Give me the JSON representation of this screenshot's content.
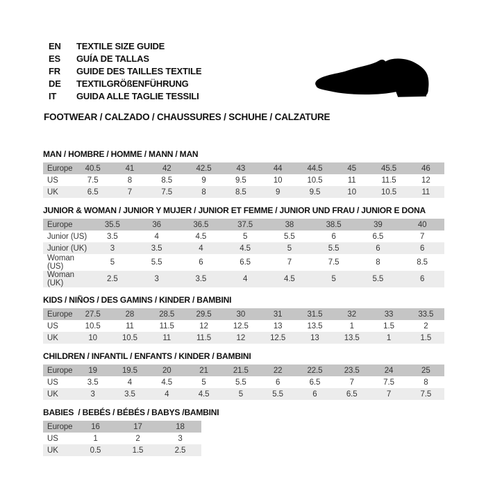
{
  "header": {
    "languages": [
      {
        "code": "EN",
        "label": "TEXTILE SIZE GUIDE"
      },
      {
        "code": "ES",
        "label": "GUÍA DE TALLAS"
      },
      {
        "code": "FR",
        "label": "GUIDE DES TAILLES TEXTILE"
      },
      {
        "code": "DE",
        "label": "TEXTILGRÖßENFÜHRUNG"
      },
      {
        "code": "IT",
        "label": "GUIDA ALLE TAGLIE TESSILI"
      }
    ],
    "category_title": "FOOTWEAR / CALZADO / CHAUSSURES / SCHUHE / CALZATURE",
    "shoe_icon": "dress-shoe-silhouette"
  },
  "colors": {
    "europe_row_bg": "#c5c5c5",
    "alt_row_bg": "#ececec",
    "table_text": "#373737",
    "heading_text": "#111111",
    "icon": "#000000"
  },
  "tables": [
    {
      "title": "MAN / HOMBRE / HOMME / MANN / MAN",
      "rows": [
        {
          "label": "Europe",
          "values": [
            "40.5",
            "41",
            "42",
            "42.5",
            "43",
            "44",
            "44.5",
            "45",
            "45.5",
            "46"
          ]
        },
        {
          "label": "US",
          "values": [
            "7.5",
            "8",
            "8.5",
            "9",
            "9.5",
            "10",
            "10.5",
            "11",
            "11.5",
            "12"
          ]
        },
        {
          "label": "UK",
          "values": [
            "6.5",
            "7",
            "7.5",
            "8",
            "8.5",
            "9",
            "9.5",
            "10",
            "10.5",
            "11"
          ]
        }
      ]
    },
    {
      "title": "JUNIOR & WOMAN / JUNIOR Y MUJER / JUNIOR ET FEMME / JUNIOR UND FRAU / JUNIOR E DONA",
      "rows": [
        {
          "label": "Europe",
          "values": [
            "35.5",
            "36",
            "36.5",
            "37.5",
            "38",
            "38.5",
            "39",
            "40"
          ]
        },
        {
          "label": "Junior (US)",
          "values": [
            "3.5",
            "4",
            "4.5",
            "5",
            "5.5",
            "6",
            "6.5",
            "7"
          ]
        },
        {
          "label": "Junior (UK)",
          "values": [
            "3",
            "3.5",
            "4",
            "4.5",
            "5",
            "5.5",
            "6",
            "6"
          ]
        },
        {
          "label": "Woman (US)",
          "values": [
            "5",
            "5.5",
            "6",
            "6.5",
            "7",
            "7.5",
            "8",
            "8.5"
          ]
        },
        {
          "label": "Woman (UK)",
          "values": [
            "2.5",
            "3",
            "3.5",
            "4",
            "4.5",
            "5",
            "5.5",
            "6"
          ]
        }
      ]
    },
    {
      "title": "KIDS / NIÑOS / DES GAMINS / KINDER / BAMBINI",
      "rows": [
        {
          "label": "Europe",
          "values": [
            "27.5",
            "28",
            "28.5",
            "29.5",
            "30",
            "31",
            "31.5",
            "32",
            "33",
            "33.5"
          ]
        },
        {
          "label": "US",
          "values": [
            "10.5",
            "11",
            "11.5",
            "12",
            "12.5",
            "13",
            "13.5",
            "1",
            "1.5",
            "2"
          ]
        },
        {
          "label": "UK",
          "values": [
            "10",
            "10.5",
            "11",
            "11.5",
            "12",
            "12.5",
            "13",
            "13.5",
            "1",
            "1.5"
          ]
        }
      ]
    },
    {
      "title": "CHILDREN / INFANTIL / ENFANTS / KINDER / BAMBINI",
      "rows": [
        {
          "label": "Europe",
          "values": [
            "19",
            "19.5",
            "20",
            "21",
            "21.5",
            "22",
            "22.5",
            "23.5",
            "24",
            "25"
          ]
        },
        {
          "label": "US",
          "values": [
            "3.5",
            "4",
            "4.5",
            "5",
            "5.5",
            "6",
            "6.5",
            "7",
            "7.5",
            "8"
          ]
        },
        {
          "label": "UK",
          "values": [
            "3",
            "3.5",
            "4",
            "4.5",
            "5",
            "5.5",
            "6",
            "6.5",
            "7",
            "7.5"
          ]
        }
      ]
    },
    {
      "title": "BABIES  / BEBÉS / BÉBÉS / BABYS /BAMBINI",
      "rows": [
        {
          "label": "Europe",
          "values": [
            "16",
            "17",
            "18"
          ]
        },
        {
          "label": "US",
          "values": [
            "1",
            "2",
            "3"
          ]
        },
        {
          "label": "UK",
          "values": [
            "0.5",
            "1.5",
            "2.5"
          ]
        }
      ]
    }
  ]
}
